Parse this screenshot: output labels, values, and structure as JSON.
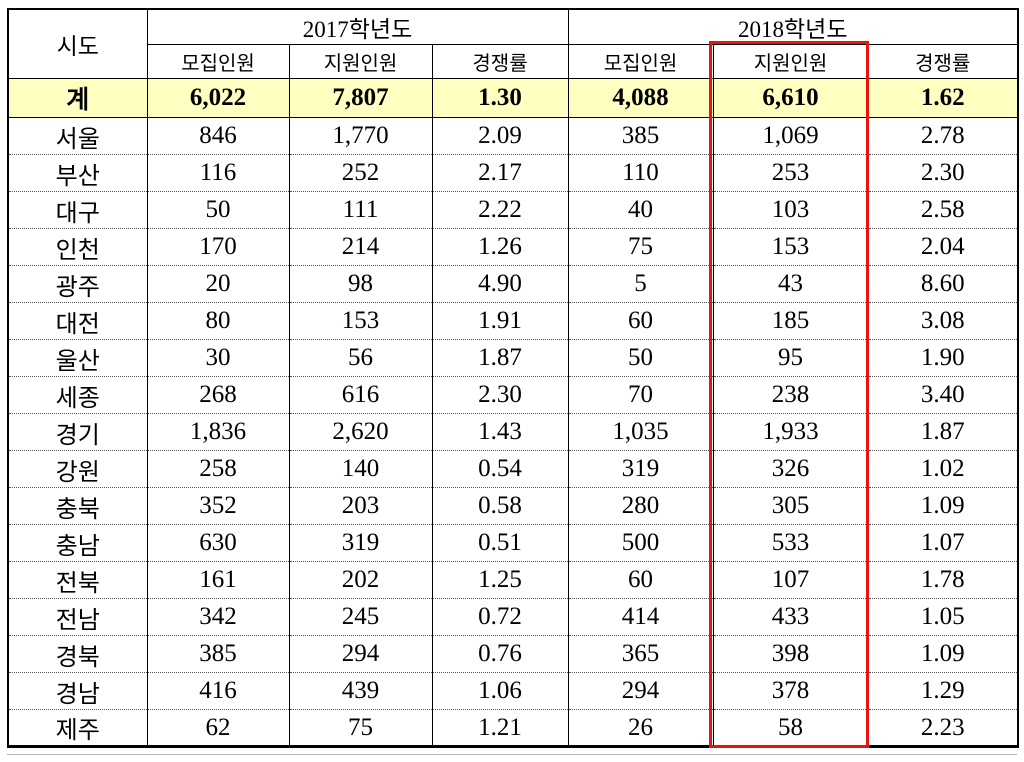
{
  "table": {
    "corner_header": "시도",
    "year_groups": [
      {
        "label": "2017학년도"
      },
      {
        "label": "2018학년도"
      }
    ],
    "sub_headers": [
      "모집인원",
      "지원인원",
      "경쟁률",
      "모집인원",
      "지원인원",
      "경쟁률"
    ],
    "total_row": {
      "label": "계",
      "values": [
        "6,022",
        "7,807",
        "1.30",
        "4,088",
        "6,610",
        "1.62"
      ]
    },
    "rows": [
      {
        "label": "서울",
        "values": [
          "846",
          "1,770",
          "2.09",
          "385",
          "1,069",
          "2.78"
        ]
      },
      {
        "label": "부산",
        "values": [
          "116",
          "252",
          "2.17",
          "110",
          "253",
          "2.30"
        ]
      },
      {
        "label": "대구",
        "values": [
          "50",
          "111",
          "2.22",
          "40",
          "103",
          "2.58"
        ]
      },
      {
        "label": "인천",
        "values": [
          "170",
          "214",
          "1.26",
          "75",
          "153",
          "2.04"
        ]
      },
      {
        "label": "광주",
        "values": [
          "20",
          "98",
          "4.90",
          "5",
          "43",
          "8.60"
        ]
      },
      {
        "label": "대전",
        "values": [
          "80",
          "153",
          "1.91",
          "60",
          "185",
          "3.08"
        ]
      },
      {
        "label": "울산",
        "values": [
          "30",
          "56",
          "1.87",
          "50",
          "95",
          "1.90"
        ]
      },
      {
        "label": "세종",
        "values": [
          "268",
          "616",
          "2.30",
          "70",
          "238",
          "3.40"
        ]
      },
      {
        "label": "경기",
        "values": [
          "1,836",
          "2,620",
          "1.43",
          "1,035",
          "1,933",
          "1.87"
        ]
      },
      {
        "label": "강원",
        "values": [
          "258",
          "140",
          "0.54",
          "319",
          "326",
          "1.02"
        ]
      },
      {
        "label": "충북",
        "values": [
          "352",
          "203",
          "0.58",
          "280",
          "305",
          "1.09"
        ]
      },
      {
        "label": "충남",
        "values": [
          "630",
          "319",
          "0.51",
          "500",
          "533",
          "1.07"
        ]
      },
      {
        "label": "전북",
        "values": [
          "161",
          "202",
          "1.25",
          "60",
          "107",
          "1.78"
        ]
      },
      {
        "label": "전남",
        "values": [
          "342",
          "245",
          "0.72",
          "414",
          "433",
          "1.05"
        ]
      },
      {
        "label": "경북",
        "values": [
          "385",
          "294",
          "0.76",
          "365",
          "398",
          "1.09"
        ]
      },
      {
        "label": "경남",
        "values": [
          "416",
          "439",
          "1.06",
          "294",
          "378",
          "1.29"
        ]
      },
      {
        "label": "제주",
        "values": [
          "62",
          "75",
          "1.21",
          "26",
          "58",
          "2.23"
        ]
      }
    ],
    "highlight": {
      "column": "2018학년도 지원인원",
      "color": "#e8150f"
    },
    "colors": {
      "total_row_bg": "#ffffc2",
      "border": "#000000"
    }
  }
}
